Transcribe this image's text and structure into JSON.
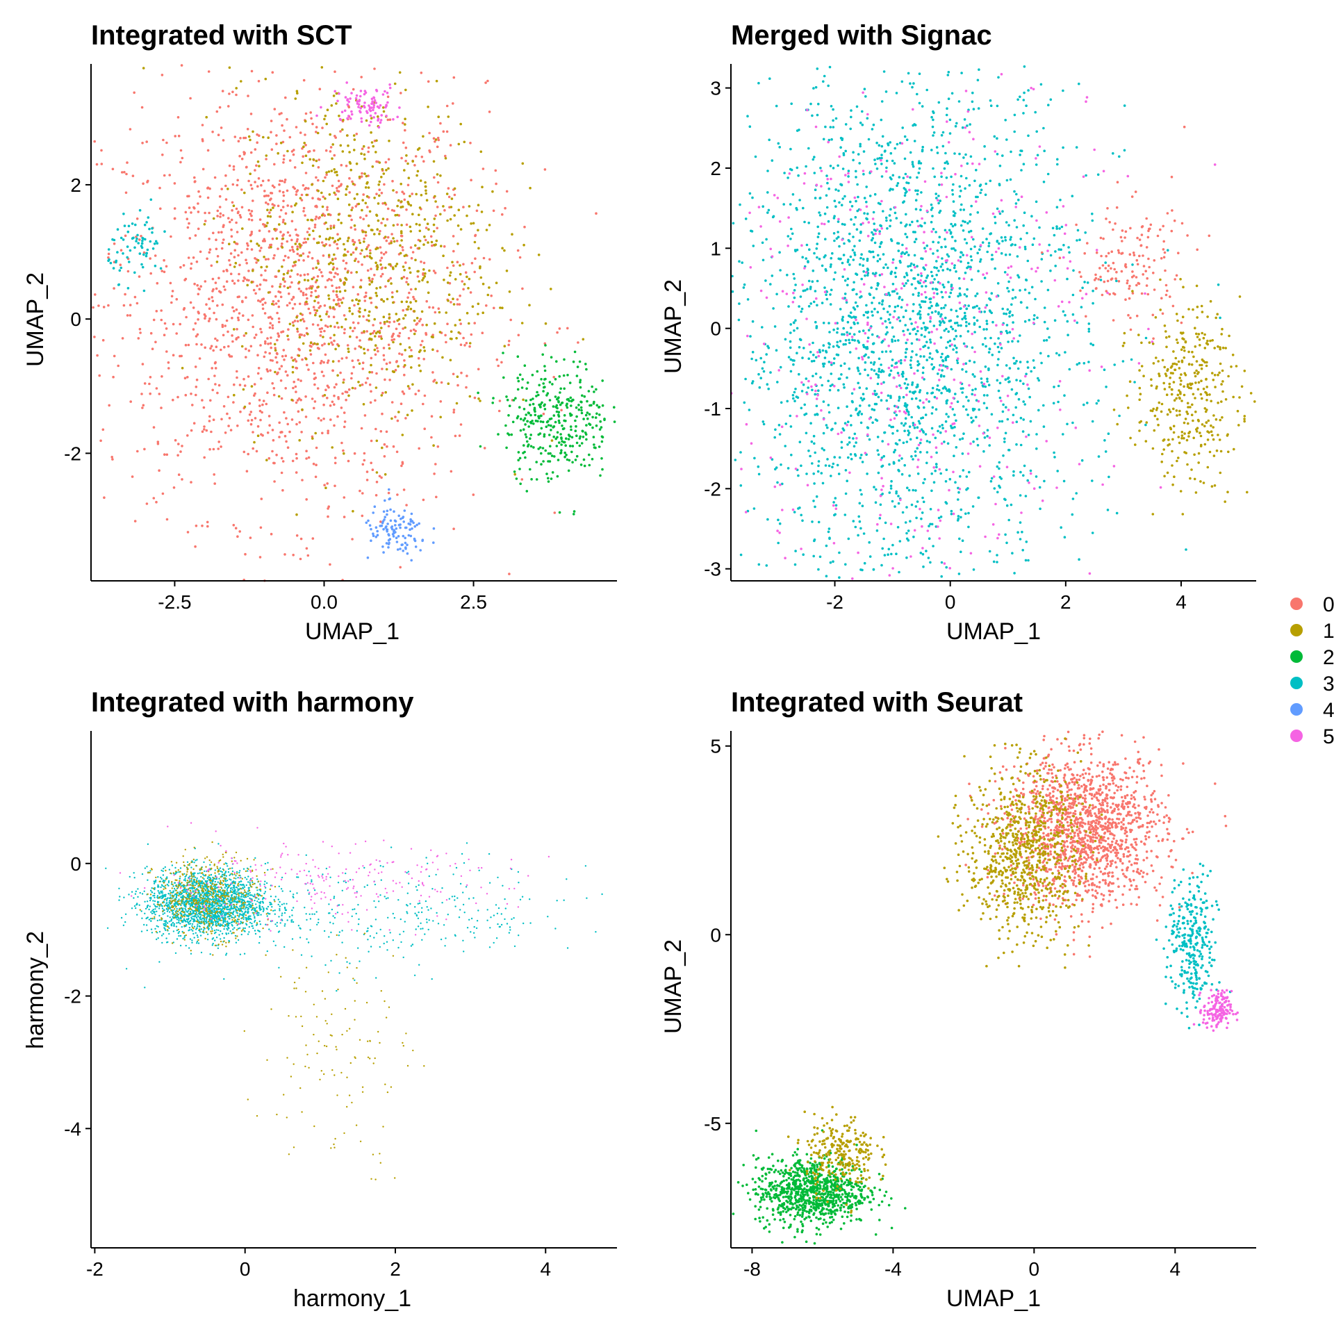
{
  "legend": {
    "placement": "right",
    "entries": [
      {
        "label": "0",
        "color": "#F8766D"
      },
      {
        "label": "1",
        "color": "#B79F00"
      },
      {
        "label": "2",
        "color": "#00BA38"
      },
      {
        "label": "3",
        "color": "#00BFC4"
      },
      {
        "label": "4",
        "color": "#619CFF"
      },
      {
        "label": "5",
        "color": "#F564E3"
      }
    ]
  },
  "chart_data": [
    {
      "type": "scatter",
      "title": "Integrated with SCT",
      "xlabel": "UMAP_1",
      "ylabel": "UMAP_2",
      "xlim": [
        -3.9,
        4.9
      ],
      "ylim": [
        -3.9,
        3.8
      ],
      "xticks": [
        -2.5,
        0.0,
        2.5
      ],
      "xtick_labels": [
        "-2.5",
        "0.0",
        "2.5"
      ],
      "yticks": [
        -2,
        0,
        2
      ],
      "ytick_labels": [
        "-2",
        "0",
        "2"
      ],
      "grid": false,
      "clusters": [
        {
          "cluster": "0",
          "center": [
            -0.5,
            0.3
          ],
          "spread": [
            1.6,
            1.6
          ],
          "approx_points": 1700
        },
        {
          "cluster": "1",
          "center": [
            0.7,
            1.0
          ],
          "spread": [
            1.1,
            1.3
          ],
          "approx_points": 700
        },
        {
          "cluster": "2",
          "center": [
            3.9,
            -1.5
          ],
          "spread": [
            0.45,
            0.45
          ],
          "approx_points": 350
        },
        {
          "cluster": "3",
          "center": [
            -3.1,
            1.1
          ],
          "spread": [
            0.25,
            0.25
          ],
          "approx_points": 70
        },
        {
          "cluster": "4",
          "center": [
            1.2,
            -3.2
          ],
          "spread": [
            0.28,
            0.2
          ],
          "approx_points": 110
        },
        {
          "cluster": "5",
          "center": [
            0.7,
            3.2
          ],
          "spread": [
            0.3,
            0.15
          ],
          "approx_points": 90
        }
      ]
    },
    {
      "type": "scatter",
      "title": "Merged with Signac",
      "xlabel": "UMAP_1",
      "ylabel": "UMAP_2",
      "xlim": [
        -3.8,
        5.3
      ],
      "ylim": [
        -3.15,
        3.3
      ],
      "xticks": [
        -2,
        0,
        2,
        4
      ],
      "xtick_labels": [
        "-2",
        "0",
        "2",
        "4"
      ],
      "yticks": [
        -3,
        -2,
        -1,
        0,
        1,
        2,
        3
      ],
      "ytick_labels": [
        "-3",
        "-2",
        "-1",
        "0",
        "1",
        "2",
        "3"
      ],
      "grid": false,
      "clusters": [
        {
          "cluster": "3",
          "center": [
            -0.7,
            0.0
          ],
          "spread": [
            1.5,
            1.6
          ],
          "approx_points": 2300
        },
        {
          "cluster": "5",
          "center": [
            -0.7,
            0.0
          ],
          "spread": [
            1.6,
            1.7
          ],
          "approx_points": 450
        },
        {
          "cluster": "0",
          "center": [
            3.1,
            0.8
          ],
          "spread": [
            0.5,
            0.4
          ],
          "approx_points": 150
        },
        {
          "cluster": "1",
          "center": [
            4.1,
            -0.8
          ],
          "spread": [
            0.45,
            0.55
          ],
          "approx_points": 350
        }
      ]
    },
    {
      "type": "scatter",
      "title": "Integrated with harmony",
      "xlabel": "harmony_1",
      "ylabel": "harmony_2",
      "xlim": [
        -2.05,
        4.95
      ],
      "ylim": [
        -5.8,
        2.0
      ],
      "xticks": [
        -2,
        0,
        2,
        4
      ],
      "xtick_labels": [
        "-2",
        "0",
        "2",
        "4"
      ],
      "yticks": [
        -4,
        -2,
        0
      ],
      "ytick_labels": [
        "-4",
        "-2",
        "0"
      ],
      "grid": false,
      "clusters": [
        {
          "cluster": "3",
          "center": [
            -0.5,
            -0.6
          ],
          "spread": [
            0.4,
            0.25
          ],
          "approx_points": 2000
        },
        {
          "cluster": "3",
          "center": [
            1.8,
            -0.8
          ],
          "spread": [
            1.4,
            0.4
          ],
          "approx_points": 350
        },
        {
          "cluster": "1",
          "center": [
            -0.5,
            -0.5
          ],
          "spread": [
            0.35,
            0.3
          ],
          "approx_points": 500
        },
        {
          "cluster": "1",
          "center": [
            1.2,
            -2.8
          ],
          "spread": [
            0.5,
            0.9
          ],
          "approx_points": 120
        },
        {
          "cluster": "5",
          "center": [
            0.9,
            -0.3
          ],
          "spread": [
            1.3,
            0.3
          ],
          "approx_points": 220
        }
      ]
    },
    {
      "type": "scatter",
      "title": "Integrated with Seurat",
      "xlabel": "UMAP_1",
      "ylabel": "UMAP_2",
      "xlim": [
        -8.6,
        6.3
      ],
      "ylim": [
        -8.3,
        5.4
      ],
      "xticks": [
        -8,
        -4,
        0,
        4
      ],
      "xtick_labels": [
        "-8",
        "-4",
        "0",
        "4"
      ],
      "yticks": [
        -5,
        0,
        5
      ],
      "ytick_labels": [
        "-5",
        "0",
        "5"
      ],
      "grid": false,
      "clusters": [
        {
          "cluster": "0",
          "center": [
            1.5,
            2.8
          ],
          "spread": [
            1.1,
            1.0
          ],
          "approx_points": 1400
        },
        {
          "cluster": "1",
          "center": [
            -0.3,
            2.2
          ],
          "spread": [
            0.8,
            1.1
          ],
          "approx_points": 800
        },
        {
          "cluster": "3",
          "center": [
            4.5,
            -0.3
          ],
          "spread": [
            0.35,
            0.9
          ],
          "approx_points": 300
        },
        {
          "cluster": "5",
          "center": [
            5.2,
            -2.0
          ],
          "spread": [
            0.2,
            0.25
          ],
          "approx_points": 150
        },
        {
          "cluster": "2",
          "center": [
            -6.3,
            -6.8
          ],
          "spread": [
            0.8,
            0.45
          ],
          "approx_points": 900
        },
        {
          "cluster": "1",
          "center": [
            -5.5,
            -5.8
          ],
          "spread": [
            0.5,
            0.5
          ],
          "approx_points": 250
        }
      ]
    }
  ]
}
